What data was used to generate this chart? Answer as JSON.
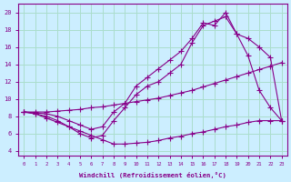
{
  "xlabel": "Windchill (Refroidissement éolien,°C)",
  "background_color": "#cceeff",
  "grid_color": "#aaddcc",
  "line_color": "#880088",
  "xlim": [
    -0.5,
    23.5
  ],
  "ylim": [
    3.5,
    21.0
  ],
  "yticks": [
    4,
    6,
    8,
    10,
    12,
    14,
    16,
    18,
    20
  ],
  "x_ticks": [
    0,
    1,
    2,
    3,
    4,
    5,
    6,
    7,
    8,
    9,
    10,
    11,
    12,
    13,
    14,
    15,
    16,
    17,
    18,
    19,
    20,
    21,
    22,
    23
  ],
  "line1_x": [
    0,
    1,
    2,
    3,
    4,
    5,
    6,
    7,
    8,
    9,
    10,
    11,
    12,
    13,
    14,
    15,
    16,
    17,
    18,
    19,
    20,
    21,
    22,
    23
  ],
  "line1_y": [
    8.5,
    8.5,
    8.5,
    8.6,
    8.7,
    8.8,
    9.0,
    9.1,
    9.3,
    9.5,
    9.7,
    9.9,
    10.1,
    10.4,
    10.7,
    11.0,
    11.4,
    11.8,
    12.2,
    12.6,
    13.0,
    13.4,
    13.8,
    14.2
  ],
  "line2_x": [
    0,
    1,
    2,
    3,
    4,
    5,
    6,
    7,
    8,
    9,
    10,
    11,
    12,
    13,
    14,
    15,
    16,
    17,
    18,
    19,
    20,
    21,
    22,
    23
  ],
  "line2_y": [
    8.5,
    8.3,
    8.0,
    7.5,
    6.8,
    6.0,
    5.5,
    5.8,
    7.5,
    9.0,
    10.5,
    11.5,
    12.0,
    13.0,
    14.0,
    16.5,
    18.5,
    19.0,
    19.5,
    17.5,
    15.0,
    11.0,
    9.0,
    7.5
  ],
  "line3_x": [
    0,
    1,
    2,
    3,
    4,
    5,
    6,
    7,
    8,
    9,
    10,
    11,
    12,
    13,
    14,
    15,
    16,
    17,
    18,
    19,
    20,
    21,
    22,
    23
  ],
  "line3_y": [
    8.5,
    8.4,
    8.3,
    8.0,
    7.5,
    7.0,
    6.5,
    6.8,
    8.5,
    9.5,
    11.5,
    12.5,
    13.5,
    14.5,
    15.5,
    17.0,
    18.8,
    18.5,
    20.0,
    17.5,
    17.0,
    16.0,
    14.8,
    7.5
  ],
  "line4_x": [
    0,
    1,
    2,
    3,
    4,
    5,
    6,
    7,
    8,
    9,
    10,
    11,
    12,
    13,
    14,
    15,
    16,
    17,
    18,
    19,
    20,
    21,
    22,
    23
  ],
  "line4_y": [
    8.5,
    8.3,
    7.8,
    7.3,
    6.8,
    6.3,
    5.8,
    5.3,
    4.8,
    4.8,
    4.9,
    5.0,
    5.2,
    5.5,
    5.7,
    6.0,
    6.2,
    6.5,
    6.8,
    7.0,
    7.3,
    7.5,
    7.5,
    7.5
  ]
}
